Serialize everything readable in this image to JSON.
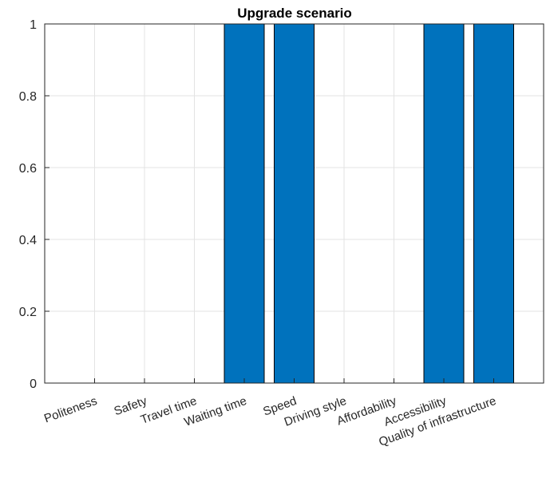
{
  "chart_data": {
    "type": "bar",
    "title": "Upgrade scenario",
    "categories": [
      "Politeness",
      "Safety",
      "Travel time",
      "Waiting time",
      "Speed",
      "Driving style",
      "Affordability",
      "Accessibility",
      "Quality of infrastructure"
    ],
    "values": [
      0,
      0,
      0,
      1,
      1,
      0,
      0,
      1,
      1
    ],
    "xlabel": "",
    "ylabel": "",
    "ylim": [
      0,
      1
    ],
    "yticks": [
      "0",
      "0.2",
      "0.4",
      "0.6",
      "0.8",
      "1"
    ],
    "grid": true,
    "bar_color": "#0072BD",
    "edge_color": "#000000",
    "tick_label_rotation": "angled"
  }
}
